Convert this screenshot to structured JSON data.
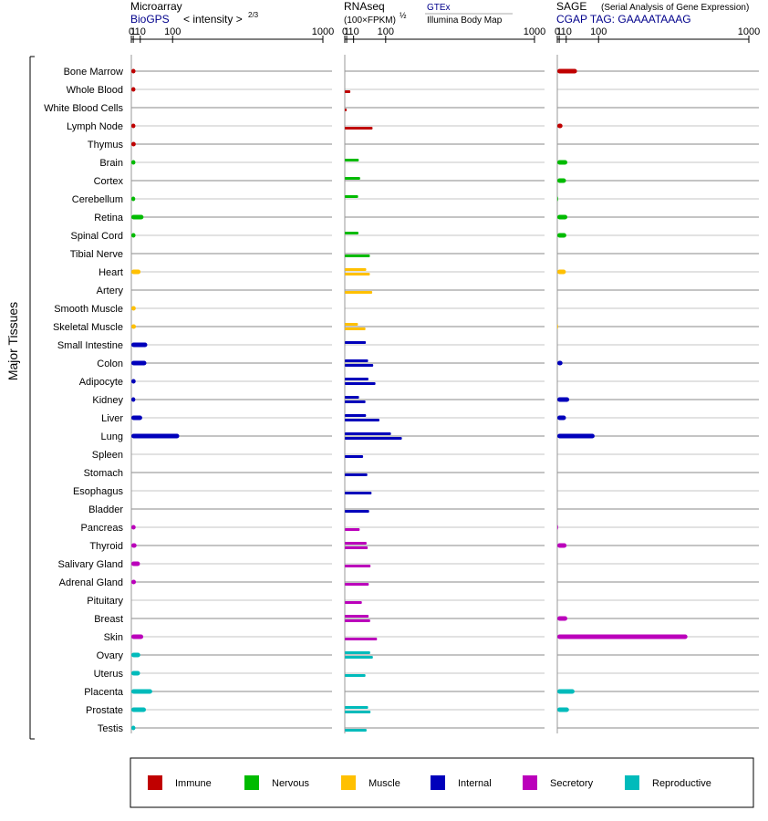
{
  "chart_data": {
    "type": "bar",
    "scale": "power-2/3",
    "panels": [
      {
        "id": "microarray",
        "title": "Microarray",
        "source_label": "BioGPS",
        "unit_label": "< intensity >",
        "unit_superscript": "2/3",
        "ticks": [
          0,
          1,
          10,
          100,
          1000
        ],
        "xlim": [
          0,
          1000
        ],
        "rows_per_tissue": 1
      },
      {
        "id": "rnaseq",
        "title": "RNAseq",
        "unit_label": "(100×FPKM)",
        "unit_superscript": "½",
        "source_label": "GTEx",
        "source_label2": "Illumina Body Map",
        "ticks": [
          0,
          1,
          10,
          100,
          1000
        ],
        "xlim": [
          0,
          1000
        ],
        "rows_per_tissue": 2
      },
      {
        "id": "sage",
        "title": "SAGE",
        "subtitle": "(Serial Analysis of Gene Expression)",
        "source_label": "CGAP TAG: GAAAATAAAG",
        "ticks": [
          0,
          1,
          10,
          100,
          1000
        ],
        "xlim": [
          0,
          1000
        ],
        "rows_per_tissue": 1
      }
    ],
    "ylabel": "Major Tissues",
    "categories": [
      "Bone Marrow",
      "Whole Blood",
      "White Blood Cells",
      "Lymph Node",
      "Thymus",
      "Brain",
      "Cortex",
      "Cerebellum",
      "Retina",
      "Spinal Cord",
      "Tibial Nerve",
      "Heart",
      "Artery",
      "Smooth Muscle",
      "Skeletal Muscle",
      "Small Intestine",
      "Colon",
      "Adipocyte",
      "Kidney",
      "Liver",
      "Lung",
      "Spleen",
      "Stomach",
      "Esophagus",
      "Bladder",
      "Pancreas",
      "Thyroid",
      "Salivary Gland",
      "Adrenal Gland",
      "Pituitary",
      "Breast",
      "Skin",
      "Ovary",
      "Uterus",
      "Placenta",
      "Prostate",
      "Testis"
    ],
    "groups": [
      "immune",
      "immune",
      "immune",
      "immune",
      "immune",
      "nervous",
      "nervous",
      "nervous",
      "nervous",
      "nervous",
      "nervous",
      "muscle",
      "muscle",
      "muscle",
      "muscle",
      "internal",
      "internal",
      "internal",
      "internal",
      "internal",
      "internal",
      "internal",
      "internal",
      "internal",
      "internal",
      "secretory",
      "secretory",
      "secretory",
      "secretory",
      "secretory",
      "secretory",
      "secretory",
      "reproductive",
      "reproductive",
      "reproductive",
      "reproductive",
      "reproductive"
    ],
    "colors": {
      "immune": "#c00000",
      "nervous": "#00bb00",
      "muscle": "#ffc000",
      "internal": "#0000bb",
      "secretory": "#bb00bb",
      "reproductive": "#00bbbb"
    },
    "series": [
      {
        "panel": "microarray",
        "values": [
          3.2,
          3.1,
          null,
          3.1,
          3.5,
          3.1,
          null,
          2.9,
          16,
          3.2,
          null,
          10.5,
          null,
          3.5,
          3.7,
          24,
          22,
          3.4,
          3.0,
          13.5,
          125,
          null,
          null,
          null,
          null,
          3.4,
          4.5,
          9.5,
          3.7,
          null,
          null,
          15.5,
          10,
          9.6,
          36,
          21,
          3.1
        ]
      },
      {
        "panel": "rnaseq",
        "name": "GTEx",
        "values": [
          null,
          null,
          null,
          null,
          null,
          20,
          23,
          18.6,
          null,
          19.3,
          null,
          38,
          null,
          null,
          18.2,
          37,
          43,
          44,
          20.5,
          37.5,
          120,
          null,
          null,
          null,
          null,
          null,
          39,
          null,
          null,
          null,
          44.5,
          null,
          49,
          null,
          null,
          43,
          null
        ]
      },
      {
        "panel": "rnaseq",
        "name": "Illumina Body Map",
        "values": [
          null,
          5,
          1,
          56,
          null,
          null,
          null,
          null,
          null,
          null,
          48,
          48,
          55,
          null,
          36,
          null,
          58,
          65,
          36,
          78,
          165,
          30,
          41,
          53,
          46,
          22,
          42,
          50,
          45,
          27,
          49,
          70,
          57,
          36,
          null,
          50,
          39
        ]
      },
      {
        "panel": "sage",
        "values": [
          33,
          null,
          null,
          4.5,
          null,
          12,
          9.6,
          0.1,
          12,
          10.2,
          null,
          9.4,
          null,
          null,
          0.05,
          null,
          4.5,
          null,
          15.5,
          9.6,
          86,
          null,
          null,
          null,
          null,
          0.1,
          10.6,
          null,
          null,
          null,
          12,
          560,
          null,
          null,
          27,
          15,
          null
        ]
      }
    ],
    "legend": {
      "position": "bottom",
      "entries": [
        {
          "key": "immune",
          "label": "Immune"
        },
        {
          "key": "nervous",
          "label": "Nervous"
        },
        {
          "key": "muscle",
          "label": "Muscle"
        },
        {
          "key": "internal",
          "label": "Internal"
        },
        {
          "key": "secretory",
          "label": "Secretory"
        },
        {
          "key": "reproductive",
          "label": "Reproductive"
        }
      ]
    }
  }
}
